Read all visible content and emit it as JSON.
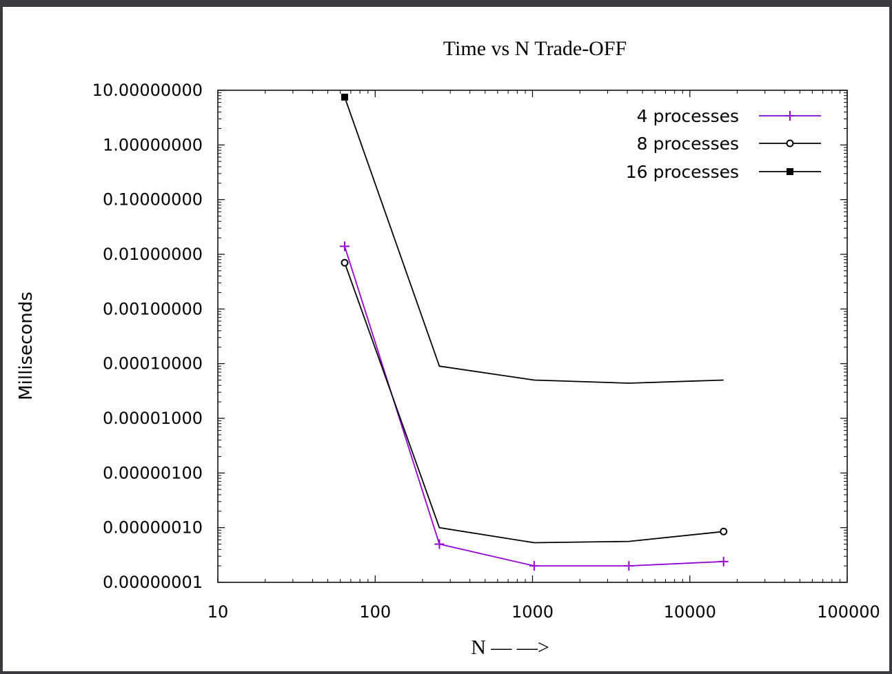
{
  "chart_data": {
    "type": "line",
    "title": "Time vs N Trade-OFF",
    "xlabel": "N — —>",
    "ylabel": "Milliseconds",
    "x_scale": "log",
    "y_scale": "log",
    "xlim": [
      10,
      100000
    ],
    "ylim": [
      1e-08,
      10
    ],
    "x_ticks": [
      {
        "value": 10,
        "label": "10"
      },
      {
        "value": 100,
        "label": "100"
      },
      {
        "value": 1000,
        "label": "1000"
      },
      {
        "value": 10000,
        "label": "10000"
      },
      {
        "value": 100000,
        "label": "100000"
      }
    ],
    "y_ticks": [
      {
        "value": 10,
        "label": "10.00000000"
      },
      {
        "value": 1,
        "label": "1.00000000"
      },
      {
        "value": 0.1,
        "label": "0.10000000"
      },
      {
        "value": 0.01,
        "label": "0.01000000"
      },
      {
        "value": 0.001,
        "label": "0.00100000"
      },
      {
        "value": 0.0001,
        "label": "0.00010000"
      },
      {
        "value": 1e-05,
        "label": "0.00001000"
      },
      {
        "value": 1e-06,
        "label": "0.00000100"
      },
      {
        "value": 1e-07,
        "label": "0.00000010"
      },
      {
        "value": 1e-08,
        "label": "0.00000001"
      }
    ],
    "legend_position": "top-right",
    "series": [
      {
        "name": "4 processes",
        "color": "#9400d3",
        "marker": "plus",
        "x": [
          64,
          256,
          1024,
          4096,
          16384
        ],
        "y": [
          0.014,
          5e-08,
          2e-08,
          2e-08,
          2.4e-08
        ]
      },
      {
        "name": "8 processes",
        "color": "#000000",
        "marker": "open-circle",
        "x": [
          64,
          256,
          1024,
          4096,
          16384
        ],
        "y": [
          0.007,
          1e-07,
          5.3e-08,
          5.6e-08,
          8.5e-08
        ]
      },
      {
        "name": "16 processes",
        "color": "#000000",
        "marker": "filled-square",
        "x": [
          64,
          256,
          1024,
          4096,
          16384
        ],
        "y": [
          7.5,
          9e-05,
          5e-05,
          4.4e-05,
          5e-05
        ]
      }
    ]
  }
}
